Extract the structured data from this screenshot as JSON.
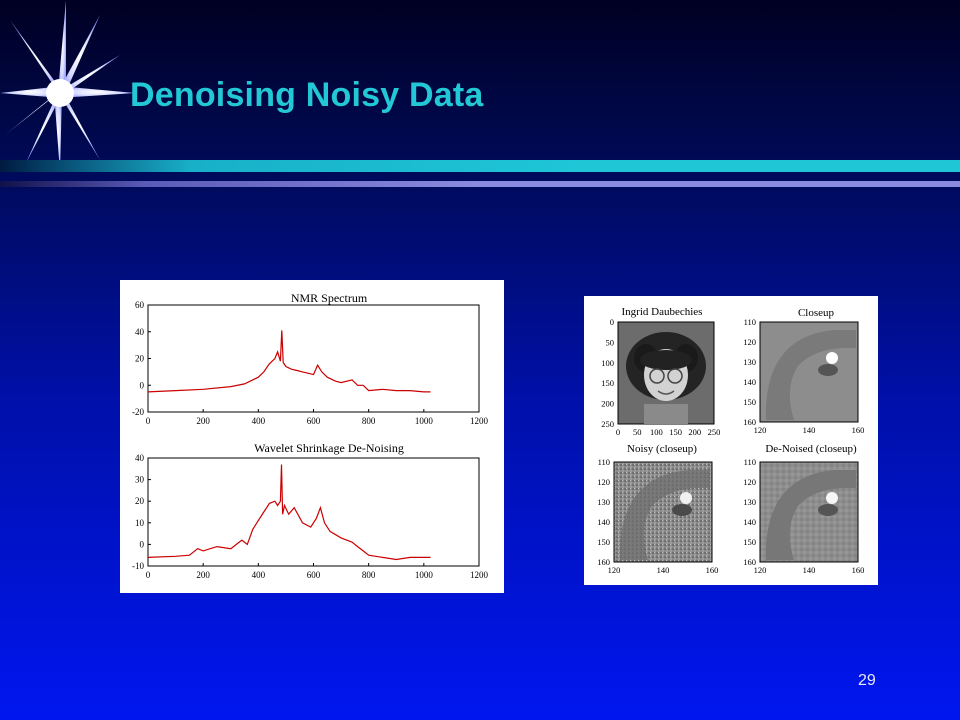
{
  "slide": {
    "title": "Denoising Noisy Data",
    "page_number": "29"
  },
  "colors": {
    "title": "#22c8d6",
    "signal": "#cc0000",
    "rule": "#1ec6d6"
  },
  "icons": [
    "starburst-icon"
  ],
  "chart_data": [
    {
      "type": "line",
      "title": "NMR Spectrum",
      "xlim": [
        0,
        1200
      ],
      "ylim": [
        -20,
        60
      ],
      "xticks": [
        "0",
        "200",
        "400",
        "600",
        "800",
        "1000",
        "1200"
      ],
      "yticks": [
        "-20",
        "0",
        "20",
        "40",
        "60"
      ],
      "series": [
        {
          "x": [
            0,
            100,
            200,
            300,
            350,
            400,
            420,
            440,
            460,
            470,
            480,
            485,
            490,
            500,
            520,
            540,
            560,
            580,
            600,
            615,
            630,
            650,
            680,
            700,
            740,
            760,
            780,
            800,
            850,
            900,
            950,
            1000,
            1024
          ],
          "values": [
            -5,
            -4,
            -3,
            -1,
            1,
            6,
            10,
            16,
            20,
            25,
            18,
            41,
            17,
            14,
            12,
            11,
            10,
            9,
            8,
            15,
            10,
            6,
            3,
            2,
            4,
            0,
            0,
            -4,
            -3,
            -4,
            -4,
            -5,
            -5
          ]
        }
      ]
    },
    {
      "type": "line",
      "title": "Wavelet Shrinkage De-Noising",
      "xlim": [
        0,
        1200
      ],
      "ylim": [
        -10,
        40
      ],
      "xticks": [
        "0",
        "200",
        "400",
        "600",
        "800",
        "1000",
        "1200"
      ],
      "yticks": [
        "-10",
        "0",
        "10",
        "20",
        "30",
        "40"
      ],
      "series": [
        {
          "x": [
            0,
            100,
            150,
            180,
            200,
            250,
            300,
            340,
            360,
            380,
            400,
            420,
            440,
            460,
            470,
            480,
            484,
            488,
            495,
            510,
            530,
            560,
            590,
            610,
            625,
            640,
            660,
            700,
            740,
            760,
            780,
            800,
            850,
            900,
            950,
            1000,
            1024
          ],
          "values": [
            -6,
            -5.5,
            -5,
            -2,
            -3,
            -1,
            -2,
            2,
            0,
            7,
            11,
            15,
            19,
            20,
            18,
            20,
            37,
            14,
            18,
            14,
            17,
            10,
            8,
            12,
            17,
            10,
            6,
            3,
            1,
            -1,
            -3,
            -5,
            -6,
            -7,
            -6,
            -6,
            -6
          ]
        }
      ]
    }
  ],
  "image_panels": [
    {
      "title": "Ingrid Daubechies",
      "yticks": [
        "0",
        "50",
        "100",
        "150",
        "200",
        "250"
      ],
      "xticks": [
        "0",
        "50",
        "100",
        "150",
        "200",
        "250"
      ]
    },
    {
      "title": "Closeup",
      "yticks": [
        "110",
        "120",
        "130",
        "140",
        "150",
        "160"
      ],
      "xticks": [
        "120",
        "140",
        "160"
      ]
    },
    {
      "title": "Noisy (closeup)",
      "yticks": [
        "110",
        "120",
        "130",
        "140",
        "150",
        "160"
      ],
      "xticks": [
        "120",
        "140",
        "160"
      ]
    },
    {
      "title": "De-Noised (closeup)",
      "yticks": [
        "110",
        "120",
        "130",
        "140",
        "150",
        "160"
      ],
      "xticks": [
        "120",
        "140",
        "160"
      ]
    }
  ]
}
